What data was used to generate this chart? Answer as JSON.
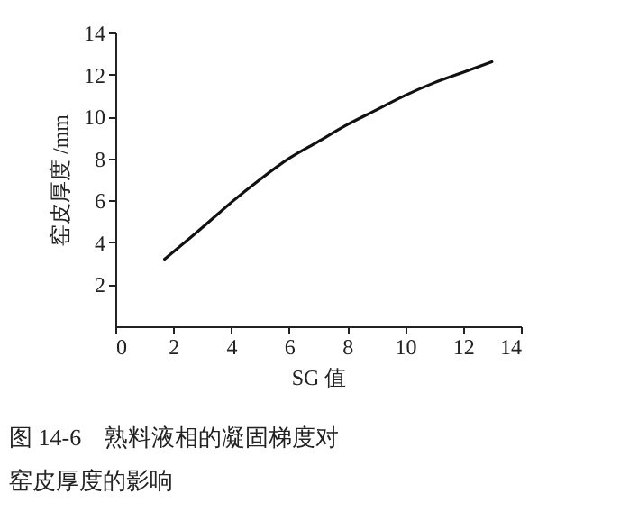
{
  "chart_data": {
    "type": "line",
    "title": "图 14-6　熟料液相的凝固梯度对窑皮厚度的影响",
    "xlabel": "SG 值",
    "ylabel": "窑皮厚度 /mm",
    "x": [
      1.7,
      3,
      4,
      5,
      6,
      7,
      8,
      9,
      10,
      11,
      12,
      13
    ],
    "series": [
      {
        "color": "#111111",
        "values": [
          3.2,
          4.7,
          5.9,
          7.0,
          8.0,
          8.8,
          9.6,
          10.3,
          11.0,
          11.6,
          12.1,
          12.6
        ]
      }
    ],
    "xlim": [
      0,
      14
    ],
    "xticks": [
      0,
      2,
      4,
      6,
      8,
      10,
      12,
      14
    ],
    "ylim": [
      0,
      14
    ],
    "yticks": [
      2,
      4,
      6,
      8,
      10,
      12,
      14
    ],
    "grid": false,
    "marker": "none",
    "line_style": "solid"
  }
}
